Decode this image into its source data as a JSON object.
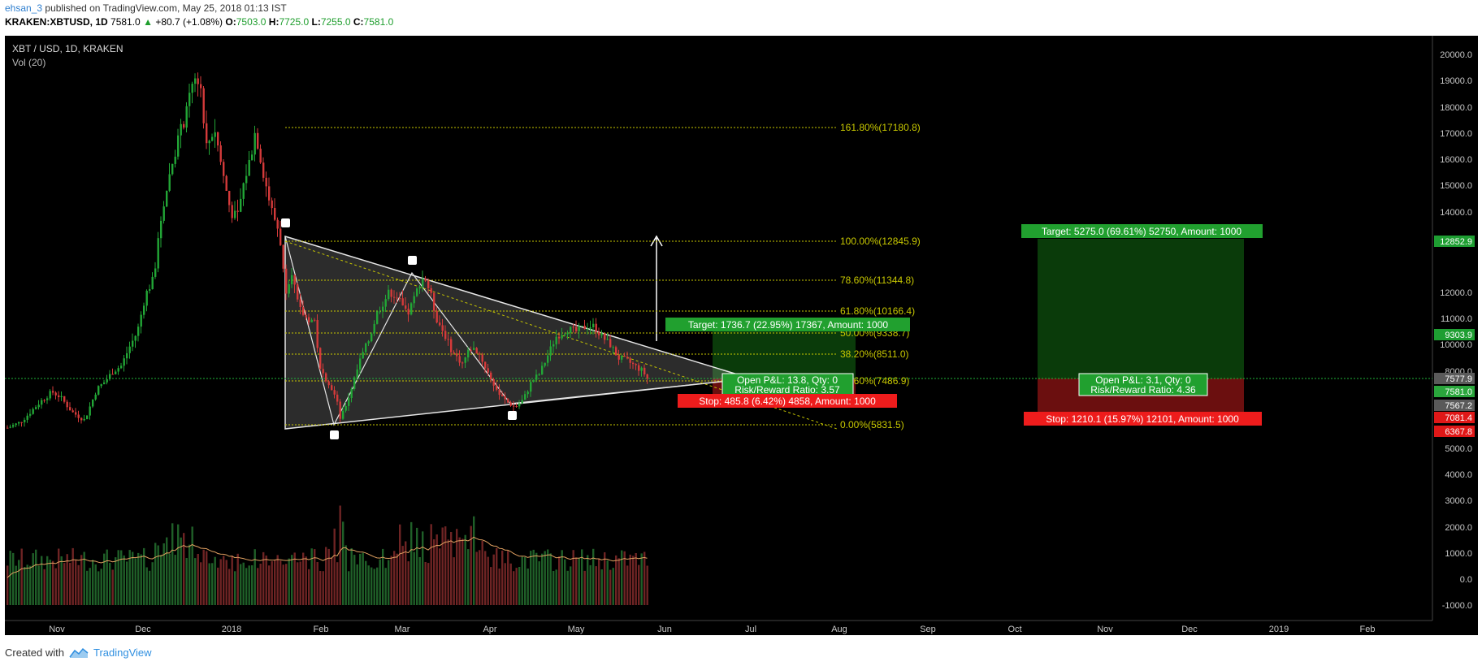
{
  "header": {
    "user": "ehsan_3",
    "published": "published on TradingView.com, May 25, 2018 01:13 IST",
    "symbol": "KRAKEN:XBTUSD, 1D",
    "price": "7581.0",
    "change": "+80.7 (+1.08%)",
    "o_label": "O:",
    "o_value": "7503.0",
    "h_label": "H:",
    "h_value": "7725.0",
    "l_label": "L:",
    "l_value": "7255.0",
    "c_label": "C:",
    "c_value": "7581.0"
  },
  "chart": {
    "title": "XBT / USD, 1D, KRAKEN",
    "vol_label": "Vol (20)",
    "y_ticks": [
      "20000.0",
      "19000.0",
      "18000.0",
      "17000.0",
      "16000.0",
      "15000.0",
      "14000.0",
      "12000.0",
      "11000.0",
      "10000.0",
      "8000.0",
      "5000.0",
      "4000.0",
      "3000.0",
      "2000.0",
      "1000.0",
      "0.0",
      "-1000.0"
    ],
    "x_ticks": [
      "Nov",
      "Dec",
      "2018",
      "Feb",
      "Mar",
      "Apr",
      "May",
      "Jun",
      "Jul",
      "Aug",
      "Sep",
      "Oct",
      "Nov",
      "Dec",
      "2019",
      "Feb"
    ],
    "fib_levels": [
      "161.80%(17180.8)",
      "100.00%(12845.9)",
      "78.60%(11344.8)",
      "61.80%(10166.4)",
      "50.00%(9338.7)",
      "38.20%(8511.0)",
      "23.60%(7486.9)",
      "0.00%(5831.5)"
    ],
    "price_tags": [
      {
        "text": "12852.9",
        "color": "#1e9e32"
      },
      {
        "text": "9303.9",
        "color": "#1e9e32"
      },
      {
        "text": "7577.9",
        "color": "#5a5a5a"
      },
      {
        "text": "7581.0",
        "color": "#2aa63c"
      },
      {
        "text": "7567.2",
        "color": "#5a5a5a"
      },
      {
        "text": "7081.4",
        "color": "#e01818"
      },
      {
        "text": "6367.8",
        "color": "#e01818"
      }
    ],
    "position1": {
      "target": "Target: 1736.7 (22.95%) 17367, Amount: 1000",
      "pnl": "Open P&L: 13.8, Qty: 0",
      "rr": "Risk/Reward Ratio: 3.57",
      "stop": "Stop: 485.8 (6.42%) 4858, Amount: 1000"
    },
    "position2": {
      "target": "Target: 5275.0 (69.61%) 52750, Amount: 1000",
      "pnl": "Open P&L: 3.1, Qty: 0",
      "rr": "Risk/Reward Ratio: 4.36",
      "stop": "Stop: 1210.1 (15.97%) 12101, Amount: 1000"
    },
    "colors": {
      "up": "#22a636",
      "down": "#d43a3a",
      "fib": "#c8c800",
      "bg": "#000000",
      "target_zone": "#0a3b0a",
      "stop_zone": "#6b0f0f"
    }
  },
  "footer": {
    "created_with": "Created with",
    "brand": "TradingView"
  }
}
